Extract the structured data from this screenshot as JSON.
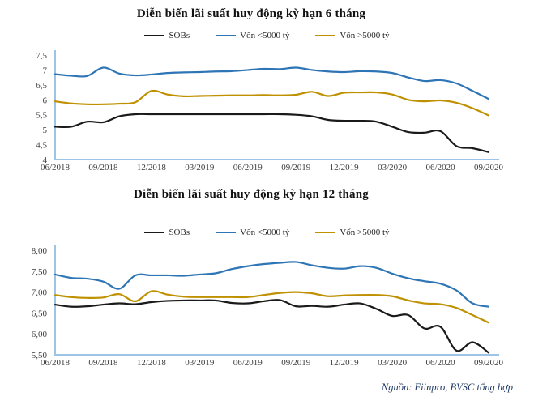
{
  "source_note": "Nguồn: Fiinpro, BVSC tổng hợp",
  "colors": {
    "axis": "#9dc3e6",
    "sobs": "#1a1a1a",
    "under5000": "#2e75b6",
    "over5000": "#bf9000"
  },
  "chart_data": [
    {
      "type": "line",
      "title": "Diễn biến lãi suất huy động kỳ hạn 6 tháng",
      "x_unit": "month",
      "x_start": "06/2018",
      "x_end": "09/2020",
      "x_tick_labels": [
        "06/2018",
        "09/2018",
        "12/2018",
        "03/2019",
        "06/2019",
        "09/2019",
        "12/2019",
        "03/2020",
        "06/2020",
        "09/2020"
      ],
      "ylim": [
        4.0,
        7.5
      ],
      "y_ticks": [
        {
          "value": 7.5,
          "label": "7,5"
        },
        {
          "value": 7.0,
          "label": "7"
        },
        {
          "value": 6.5,
          "label": "6,5"
        },
        {
          "value": 6.0,
          "label": "6"
        },
        {
          "value": 5.5,
          "label": "5,5"
        },
        {
          "value": 5.0,
          "label": "5"
        },
        {
          "value": 4.5,
          "label": "4,5"
        },
        {
          "value": 4.0,
          "label": "4"
        }
      ],
      "grid": false,
      "legend_position": "top-center",
      "series": [
        {
          "name": "SOBs",
          "color": "#1a1a1a",
          "values": [
            5.1,
            5.1,
            5.27,
            5.25,
            5.45,
            5.52,
            5.52,
            5.52,
            5.52,
            5.52,
            5.52,
            5.52,
            5.52,
            5.52,
            5.52,
            5.5,
            5.45,
            5.33,
            5.3,
            5.3,
            5.27,
            5.1,
            4.92,
            4.9,
            4.95,
            4.45,
            4.38,
            4.25
          ]
        },
        {
          "name": "Vốn <5000 tỷ",
          "color": "#2e75b6",
          "values": [
            6.86,
            6.81,
            6.8,
            7.08,
            6.88,
            6.82,
            6.85,
            6.9,
            6.92,
            6.93,
            6.95,
            6.96,
            7.0,
            7.04,
            7.03,
            7.08,
            7.0,
            6.95,
            6.93,
            6.96,
            6.95,
            6.9,
            6.75,
            6.63,
            6.66,
            6.55,
            6.3,
            6.03
          ]
        },
        {
          "name": "Vốn >5000 tỷ",
          "color": "#bf9000",
          "values": [
            5.95,
            5.88,
            5.85,
            5.85,
            5.87,
            5.92,
            6.3,
            6.18,
            6.12,
            6.13,
            6.14,
            6.15,
            6.15,
            6.16,
            6.15,
            6.17,
            6.27,
            6.13,
            6.24,
            6.25,
            6.25,
            6.18,
            6.0,
            5.95,
            5.98,
            5.9,
            5.72,
            5.48
          ]
        }
      ]
    },
    {
      "type": "line",
      "title": "Diễn biến lãi suất huy động kỳ hạn 12 tháng",
      "x_unit": "month",
      "x_start": "06/2018",
      "x_end": "09/2020",
      "x_tick_labels": [
        "06/2018",
        "09/2018",
        "12/2018",
        "03/2019",
        "06/2019",
        "09/2019",
        "12/2019",
        "03/2020",
        "06/2020",
        "09/2020"
      ],
      "ylim": [
        5.5,
        8.0
      ],
      "y_ticks": [
        {
          "value": 8.0,
          "label": "8,00"
        },
        {
          "value": 7.5,
          "label": "7,50"
        },
        {
          "value": 7.0,
          "label": "7,00"
        },
        {
          "value": 6.5,
          "label": "6,50"
        },
        {
          "value": 6.0,
          "label": "6,00"
        },
        {
          "value": 5.5,
          "label": "5,50"
        }
      ],
      "grid": false,
      "legend_position": "top-center",
      "series": [
        {
          "name": "SOBs",
          "color": "#1a1a1a",
          "values": [
            6.7,
            6.65,
            6.66,
            6.7,
            6.73,
            6.71,
            6.76,
            6.79,
            6.8,
            6.8,
            6.8,
            6.74,
            6.73,
            6.78,
            6.81,
            6.66,
            6.67,
            6.65,
            6.7,
            6.73,
            6.6,
            6.43,
            6.45,
            6.13,
            6.17,
            5.6,
            5.8,
            5.55
          ]
        },
        {
          "name": "Vốn <5000 tỷ",
          "color": "#2e75b6",
          "values": [
            7.42,
            7.34,
            7.32,
            7.25,
            7.08,
            7.4,
            7.4,
            7.4,
            7.39,
            7.42,
            7.45,
            7.55,
            7.62,
            7.67,
            7.7,
            7.72,
            7.64,
            7.58,
            7.56,
            7.62,
            7.58,
            7.44,
            7.33,
            7.26,
            7.2,
            7.04,
            6.73,
            6.65
          ]
        },
        {
          "name": "Vốn >5000 tỷ",
          "color": "#bf9000",
          "values": [
            6.93,
            6.88,
            6.86,
            6.87,
            6.95,
            6.78,
            7.02,
            6.94,
            6.89,
            6.88,
            6.88,
            6.88,
            6.88,
            6.93,
            6.98,
            7.0,
            6.97,
            6.9,
            6.92,
            6.93,
            6.93,
            6.9,
            6.8,
            6.73,
            6.71,
            6.62,
            6.45,
            6.27
          ]
        }
      ]
    }
  ]
}
